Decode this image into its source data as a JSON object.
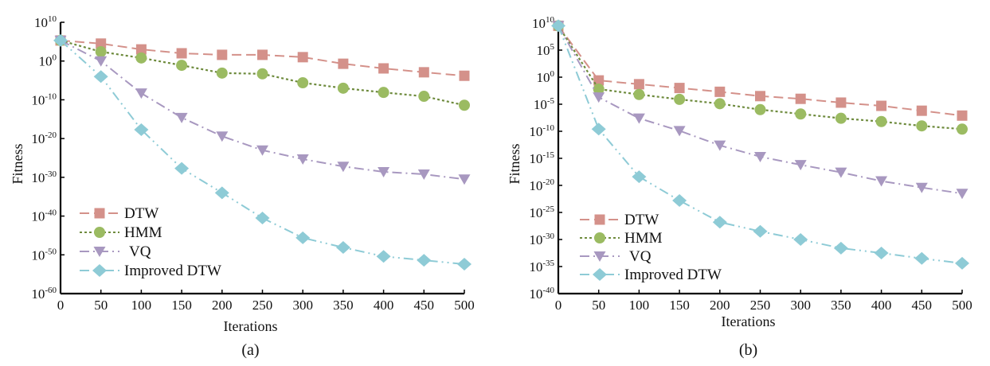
{
  "chart_data": [
    {
      "id": "a",
      "type": "line",
      "panel_label": "(a)",
      "title": "",
      "xlabel": "Iterations",
      "ylabel": "Fitness",
      "yscale": "log",
      "xlim": [
        0,
        500
      ],
      "ylim_exp": [
        -60,
        10
      ],
      "x_ticks": [
        0,
        50,
        100,
        150,
        200,
        250,
        300,
        350,
        400,
        450,
        500
      ],
      "y_tick_exps": [
        10,
        0,
        -10,
        -20,
        -30,
        -40,
        -50,
        -60
      ],
      "grid": false,
      "legend_position": "lower-left",
      "x": [
        0,
        50,
        100,
        150,
        200,
        250,
        300,
        350,
        400,
        450,
        500
      ],
      "series": [
        {
          "name": "DTW",
          "marker": "square",
          "dash": "dashed",
          "color": "#d4918a",
          "line_color": "#d4918a",
          "log10_values": [
            5.3,
            4.5,
            3.0,
            2.0,
            1.6,
            1.6,
            1.0,
            -0.7,
            -1.9,
            -2.9,
            -3.8
          ]
        },
        {
          "name": "HMM",
          "marker": "circle",
          "dash": "dotted",
          "color": "#9bbb62",
          "line_color": "#6e8b3d",
          "log10_values": [
            5.3,
            2.4,
            0.8,
            -1.1,
            -3.1,
            -3.3,
            -5.6,
            -7.0,
            -8.1,
            -9.1,
            -11.4
          ]
        },
        {
          "name": "VQ",
          "marker": "triangle-down",
          "dash": "dashdot",
          "color": "#a898c0",
          "line_color": "#a898c0",
          "log10_values": [
            5.3,
            0.0,
            -8.3,
            -14.6,
            -19.4,
            -23.0,
            -25.3,
            -27.2,
            -28.6,
            -29.2,
            -30.5
          ]
        },
        {
          "name": "Improved DTW",
          "marker": "diamond",
          "dash": "dashdotdot",
          "color": "#8ecbd6",
          "line_color": "#8ecbd6",
          "log10_values": [
            5.3,
            -4.0,
            -17.7,
            -27.7,
            -34.0,
            -40.5,
            -45.6,
            -48.1,
            -50.4,
            -51.4,
            -52.4
          ]
        }
      ]
    },
    {
      "id": "b",
      "type": "line",
      "panel_label": "(b)",
      "title": "",
      "xlabel": "Iterations",
      "ylabel": "Fitness",
      "yscale": "log",
      "xlim": [
        0,
        500
      ],
      "ylim_exp": [
        -40,
        10
      ],
      "x_ticks": [
        0,
        50,
        100,
        150,
        200,
        250,
        300,
        350,
        400,
        450,
        500
      ],
      "y_tick_exps": [
        10,
        5,
        0,
        -5,
        -10,
        -15,
        -20,
        -25,
        -30,
        -35,
        -40
      ],
      "grid": false,
      "legend_position": "lower-left",
      "x": [
        0,
        50,
        100,
        150,
        200,
        250,
        300,
        350,
        400,
        450,
        500
      ],
      "series": [
        {
          "name": "DTW",
          "marker": "square",
          "dash": "dashed",
          "color": "#d4918a",
          "line_color": "#d4918a",
          "log10_values": [
            9.5,
            -0.6,
            -1.3,
            -2.0,
            -2.7,
            -3.5,
            -4.0,
            -4.7,
            -5.3,
            -6.2,
            -7.1
          ]
        },
        {
          "name": "HMM",
          "marker": "circle",
          "dash": "dotted",
          "color": "#9bbb62",
          "line_color": "#6e8b3d",
          "log10_values": [
            9.5,
            -2.2,
            -3.2,
            -4.1,
            -4.9,
            -6.0,
            -6.8,
            -7.6,
            -8.2,
            -9.0,
            -9.6
          ]
        },
        {
          "name": "VQ",
          "marker": "triangle-down",
          "dash": "dashdot",
          "color": "#a898c0",
          "line_color": "#a898c0",
          "log10_values": [
            9.5,
            -3.7,
            -7.6,
            -9.9,
            -12.6,
            -14.7,
            -16.2,
            -17.6,
            -19.2,
            -20.4,
            -21.5
          ]
        },
        {
          "name": "Improved DTW",
          "marker": "diamond",
          "dash": "dashdotdot",
          "color": "#8ecbd6",
          "line_color": "#8ecbd6",
          "log10_values": [
            9.5,
            -9.6,
            -18.4,
            -22.8,
            -26.8,
            -28.5,
            -30.0,
            -31.6,
            -32.5,
            -33.5,
            -34.4
          ]
        }
      ]
    }
  ]
}
